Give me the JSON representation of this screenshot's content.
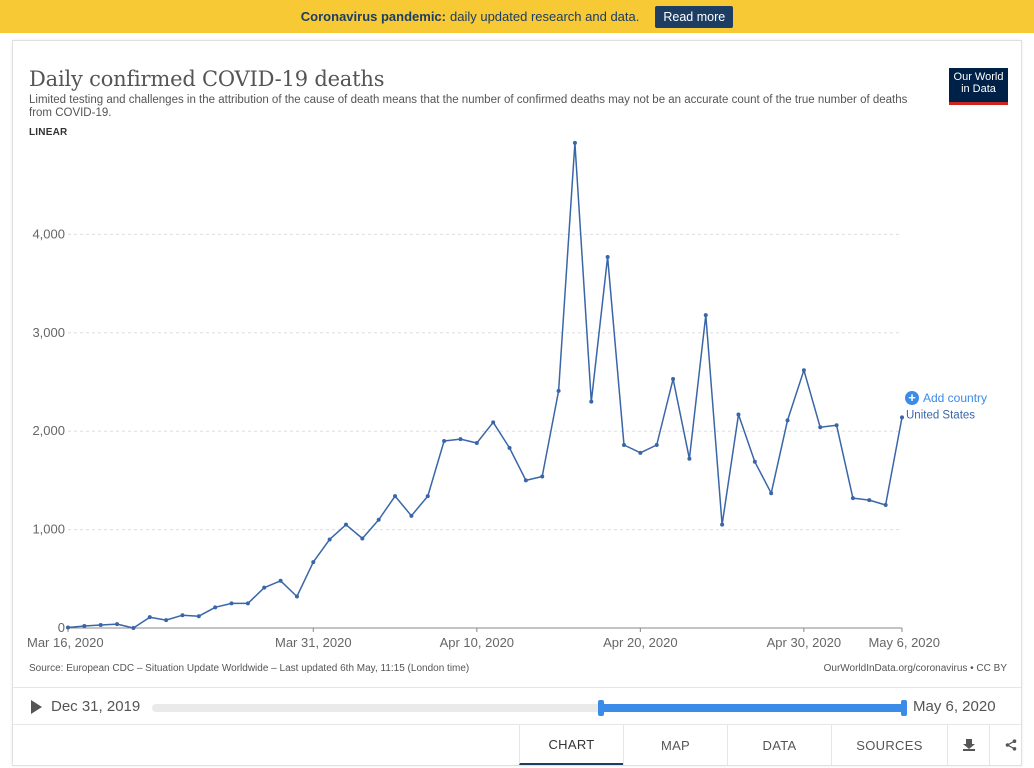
{
  "banner": {
    "bold": "Coronavirus pandemic:",
    "text": "daily updated research and data.",
    "button": "Read more"
  },
  "header": {
    "title": "Daily confirmed COVID-19 deaths",
    "subtitle": "Limited testing and challenges in the attribution of the cause of death means that the number of confirmed deaths may not be an accurate count of the true number of deaths from COVID-19.",
    "scale_label": "LINEAR",
    "logo": "Our World in Data"
  },
  "legend": {
    "add_country": "Add country",
    "series_label": "United States"
  },
  "footer": {
    "source": "Source: European CDC – Situation Update Worldwide – Last updated 6th May, 11:15 (London time)",
    "url": "OurWorldInData.org/coronavirus • CC BY"
  },
  "timeline": {
    "start": "Dec 31, 2019",
    "end": "May 6, 2020",
    "selected_range_fraction": [
      0.6,
      1.0
    ]
  },
  "tabs": [
    "CHART",
    "MAP",
    "DATA",
    "SOURCES"
  ],
  "colors": {
    "line": "#3a66a8",
    "accent": "#3b8be8",
    "banner": "#f7c934",
    "navy": "#1d3d63"
  },
  "chart_data": {
    "type": "line",
    "title": "Daily confirmed COVID-19 deaths",
    "ylim": [
      0,
      5000
    ],
    "yticks": [
      0,
      1000,
      2000,
      3000,
      4000
    ],
    "ytick_labels": [
      "0",
      "1,000",
      "2,000",
      "3,000",
      "4,000"
    ],
    "xtick_labels": [
      "Mar 16, 2020",
      "Mar 31, 2020",
      "Apr 10, 2020",
      "Apr 20, 2020",
      "Apr 30, 2020",
      "May 6, 2020"
    ],
    "xtick_index": [
      0,
      15,
      25,
      35,
      45,
      51
    ],
    "grid": true,
    "series": [
      {
        "name": "United States",
        "x": [
          "Mar 16",
          "Mar 17",
          "Mar 18",
          "Mar 19",
          "Mar 20",
          "Mar 21",
          "Mar 22",
          "Mar 23",
          "Mar 24",
          "Mar 25",
          "Mar 26",
          "Mar 27",
          "Mar 28",
          "Mar 29",
          "Mar 30",
          "Mar 31",
          "Apr 1",
          "Apr 2",
          "Apr 3",
          "Apr 4",
          "Apr 5",
          "Apr 6",
          "Apr 7",
          "Apr 8",
          "Apr 9",
          "Apr 10",
          "Apr 11",
          "Apr 12",
          "Apr 13",
          "Apr 14",
          "Apr 15",
          "Apr 16",
          "Apr 17",
          "Apr 18",
          "Apr 19",
          "Apr 20",
          "Apr 21",
          "Apr 22",
          "Apr 23",
          "Apr 24",
          "Apr 25",
          "Apr 26",
          "Apr 27",
          "Apr 28",
          "Apr 29",
          "Apr 30",
          "May 1",
          "May 2",
          "May 3",
          "May 4",
          "May 5",
          "May 6"
        ],
        "values": [
          5,
          20,
          30,
          40,
          0,
          110,
          80,
          130,
          120,
          210,
          250,
          250,
          410,
          480,
          320,
          670,
          900,
          1050,
          910,
          1100,
          1340,
          1140,
          1340,
          1900,
          1920,
          1880,
          2090,
          1830,
          1500,
          1540,
          2410,
          4930,
          2300,
          3770,
          1860,
          1780,
          1860,
          2530,
          1720,
          3180,
          1050,
          2170,
          1690,
          1370,
          2110,
          2620,
          2040,
          2060,
          1320,
          1300,
          1250,
          2140
        ]
      }
    ]
  }
}
